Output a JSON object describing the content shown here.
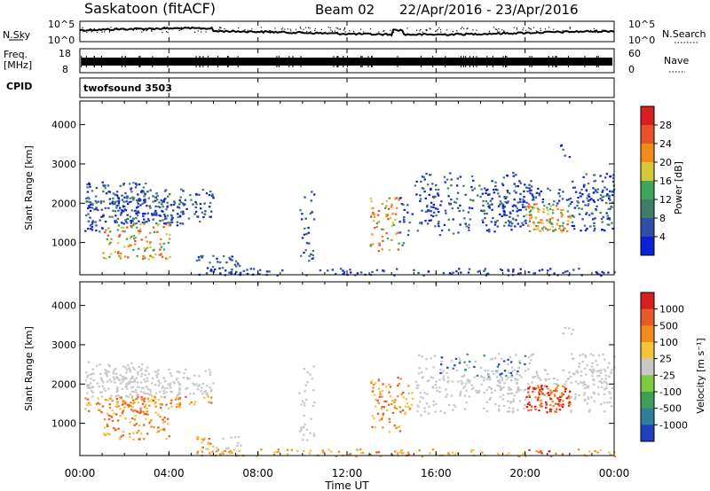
{
  "header": {
    "site": "Saskatoon (fitACF)",
    "beam": "Beam 02",
    "dates": "22/Apr/2016 - 23/Apr/2016"
  },
  "chart_data": [
    {
      "type": "line",
      "panel": "noise",
      "ylabel_left": "N.Sky",
      "ylabel_right": "N.Search",
      "ytick_labels": [
        "10^5",
        "10^0"
      ],
      "series": [
        {
          "name": "N.Sky",
          "style": "solid"
        },
        {
          "name": "N.Search",
          "style": "dotted"
        }
      ]
    },
    {
      "type": "line",
      "panel": "frequency",
      "ylabel_left": "Freq.",
      "ylabel_left_unit": "[MHz]",
      "ylabel_right": "Nave",
      "left_ticks": [
        "18",
        "8"
      ],
      "right_ticks": [
        "60",
        "0"
      ],
      "left_range": [
        8,
        18
      ],
      "right_range": [
        0,
        60
      ],
      "series": [
        {
          "name": "Nave",
          "style": "dotted"
        }
      ]
    },
    {
      "type": "text",
      "panel": "cpid",
      "label": "CPID",
      "value": "twofsound 3503"
    },
    {
      "type": "heatmap",
      "panel": "power",
      "ylabel": "Slant Range [km]",
      "ylim": [
        180,
        4600
      ],
      "yticks": [
        "1000",
        "2000",
        "3000",
        "4000"
      ],
      "colorbar_label": "Power [dB]",
      "colorbar_ticks": [
        "4",
        "8",
        "12",
        "16",
        "20",
        "24",
        "28"
      ],
      "colors": [
        "#0a1fd6",
        "#2f4fa8",
        "#3e7f6a",
        "#3ea55a",
        "#d6c83a",
        "#f08b1c",
        "#e8502a",
        "#d81e1e"
      ]
    },
    {
      "type": "heatmap",
      "panel": "velocity",
      "ylabel": "Slant Range [km]",
      "ylim": [
        180,
        4600
      ],
      "yticks": [
        "1000",
        "2000",
        "3000",
        "4000"
      ],
      "colorbar_label": "Velocity [m s⁻¹]",
      "colorbar_ticks": [
        "1000",
        "500",
        "100",
        "25",
        "-25",
        "-100",
        "-500",
        "-1000"
      ],
      "colors": [
        "#1f3fbf",
        "#2e7f9e",
        "#3e9e55",
        "#7ccb3a",
        "#c8c8c8",
        "#f5c43a",
        "#f08b1c",
        "#e85a2a",
        "#d81e1e"
      ]
    }
  ],
  "x_axis": {
    "label": "Time UT",
    "ticks": [
      "00:00",
      "04:00",
      "08:00",
      "12:00",
      "16:00",
      "20:00",
      "00:00"
    ],
    "range_hours": [
      0,
      24
    ]
  }
}
